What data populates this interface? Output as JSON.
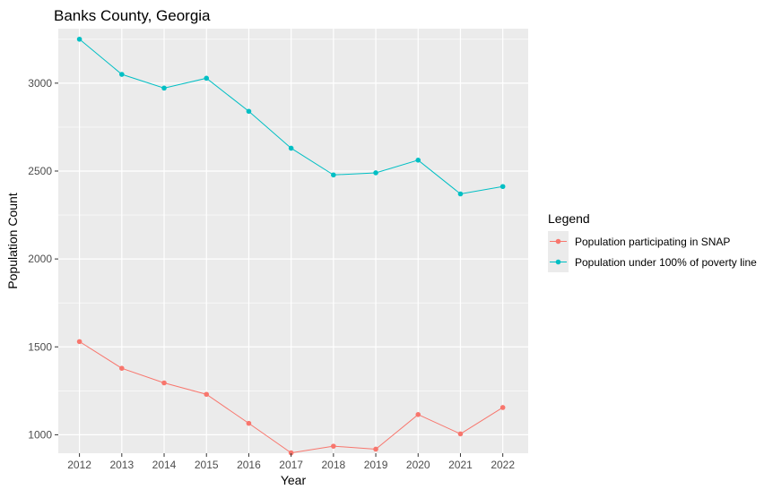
{
  "chart_data": {
    "type": "line",
    "title": "Banks County, Georgia",
    "xlabel": "Year",
    "ylabel": "Population Count",
    "x": [
      2012,
      2013,
      2014,
      2015,
      2016,
      2017,
      2018,
      2019,
      2020,
      2021,
      2022
    ],
    "xlim": [
      2011.5,
      2022.6
    ],
    "ylim": [
      895,
      3310
    ],
    "y_ticks": [
      1000,
      1500,
      2000,
      2500,
      3000
    ],
    "grid": true,
    "legend_title": "Legend",
    "legend_position": "right",
    "series": [
      {
        "name": "Population participating in SNAP",
        "color": "#F8766D",
        "values": [
          1530,
          1378,
          1295,
          1230,
          1065,
          897,
          935,
          918,
          1115,
          1005,
          1155
        ]
      },
      {
        "name": "Population under 100% of poverty line",
        "color": "#00BFC4",
        "values": [
          3250,
          3050,
          2972,
          3028,
          2840,
          2630,
          2478,
          2490,
          2562,
          2370,
          2412
        ]
      }
    ]
  },
  "colors": {
    "panel_background": "#EBEBEB",
    "grid_major": "#FFFFFF",
    "tick_text": "#4D4D4D"
  }
}
